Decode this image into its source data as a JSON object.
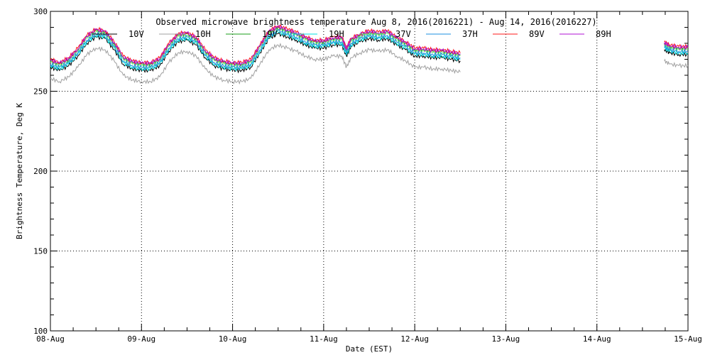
{
  "chart_data": {
    "type": "line",
    "title": "Observed microwave brightness temperature Aug  8, 2016(2016221) - Aug 14, 2016(2016227)",
    "xlabel": "Date (EST)",
    "ylabel": "Brightness Temperature, Deg K",
    "ylim": [
      100,
      300
    ],
    "xlim": [
      0,
      7
    ],
    "yticks": [
      {
        "v": 100,
        "label": "100"
      },
      {
        "v": 150,
        "label": "150"
      },
      {
        "v": 200,
        "label": "200"
      },
      {
        "v": 250,
        "label": "250"
      },
      {
        "v": 300,
        "label": "300"
      }
    ],
    "xticks": [
      {
        "v": 0,
        "label": "08-Aug"
      },
      {
        "v": 1,
        "label": "09-Aug"
      },
      {
        "v": 2,
        "label": "10-Aug"
      },
      {
        "v": 3,
        "label": "11-Aug"
      },
      {
        "v": 4,
        "label": "12-Aug"
      },
      {
        "v": 5,
        "label": "13-Aug"
      },
      {
        "v": 6,
        "label": "14-Aug"
      },
      {
        "v": 7,
        "label": "15-Aug"
      }
    ],
    "grid": true,
    "legend_position": "top",
    "baseline": {
      "x": [
        0,
        0.1,
        0.2,
        0.3,
        0.4,
        0.5,
        0.6,
        0.7,
        0.8,
        0.9,
        1.0,
        1.1,
        1.2,
        1.3,
        1.4,
        1.5,
        1.6,
        1.7,
        1.8,
        1.9,
        2.0,
        2.1,
        2.2,
        2.3,
        2.4,
        2.5,
        2.6,
        2.7,
        2.8,
        2.9,
        3.0,
        3.1,
        3.2,
        3.25,
        3.3,
        3.4,
        3.5,
        3.6,
        3.7,
        3.8,
        3.9,
        4.0,
        4.1,
        4.2,
        4.3,
        4.4,
        4.5,
        6.74,
        6.8,
        6.9,
        7.0
      ],
      "y": [
        265,
        263,
        266,
        272,
        280,
        284,
        283,
        276,
        267,
        264,
        263,
        263,
        266,
        275,
        281,
        282,
        279,
        271,
        266,
        264,
        263,
        263,
        265,
        274,
        283,
        286,
        284,
        282,
        279,
        277,
        277,
        279,
        279,
        272,
        278,
        281,
        283,
        282,
        283,
        279,
        276,
        272,
        272,
        271,
        271,
        270,
        269,
        276,
        274,
        273,
        273
      ]
    },
    "series": [
      {
        "name": "10V",
        "color": "#000000",
        "offset": 0
      },
      {
        "name": "10H",
        "color": "#a0a0a0",
        "offset": -7
      },
      {
        "name": "19V",
        "color": "#1a9e1a",
        "offset": 4
      },
      {
        "name": "19H",
        "color": "#00e0e0",
        "offset": 1
      },
      {
        "name": "37V",
        "color": "#6ee86e",
        "offset": 3
      },
      {
        "name": "37H",
        "color": "#1b8fe0",
        "offset": 2
      },
      {
        "name": "89V",
        "color": "#ff1a1a",
        "offset": 5
      },
      {
        "name": "89H",
        "color": "#b012d6",
        "offset": 4.5
      }
    ]
  }
}
